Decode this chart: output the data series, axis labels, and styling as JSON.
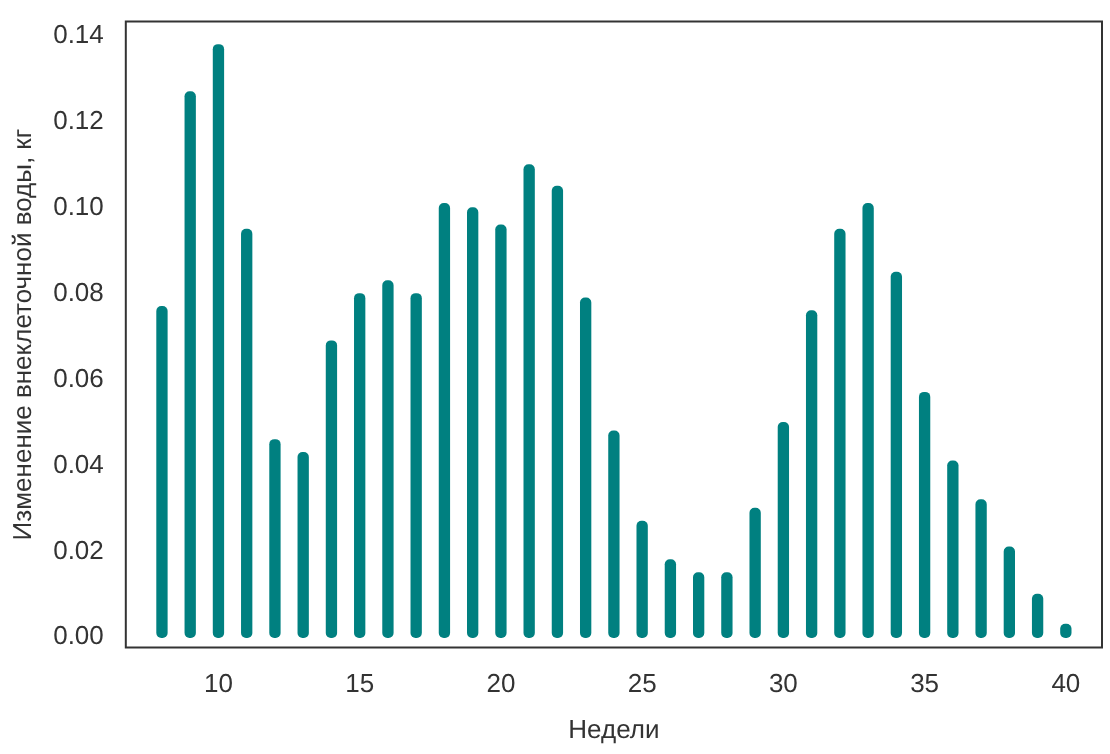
{
  "chart_data": {
    "type": "bar",
    "xlabel": "Недели",
    "ylabel": "Изменение внеклеточной воды, кг",
    "x": [
      8,
      9,
      10,
      11,
      12,
      13,
      14,
      15,
      16,
      17,
      18,
      19,
      20,
      21,
      22,
      23,
      24,
      25,
      26,
      27,
      28,
      29,
      30,
      31,
      32,
      33,
      34,
      35,
      36,
      37,
      38,
      39,
      40
    ],
    "values": [
      0.077,
      0.127,
      0.138,
      0.095,
      0.046,
      0.043,
      0.069,
      0.08,
      0.083,
      0.08,
      0.101,
      0.1,
      0.096,
      0.11,
      0.105,
      0.079,
      0.048,
      0.027,
      0.018,
      0.015,
      0.015,
      0.03,
      0.05,
      0.076,
      0.095,
      0.101,
      0.085,
      0.057,
      0.041,
      0.032,
      0.021,
      0.01,
      0.003
    ],
    "color": "#008080",
    "xlim": [
      6.72,
      41.28
    ],
    "xticks": [
      10,
      15,
      20,
      25,
      30,
      35,
      40
    ],
    "ylim": [
      -0.0024,
      0.1434
    ],
    "yticks": [
      {
        "value": 0,
        "label": "0.00"
      },
      0.02,
      0.04,
      0.06,
      0.08,
      {
        "value": 0.1,
        "label": "0.10"
      },
      0.12,
      0.14
    ],
    "grid": false
  }
}
